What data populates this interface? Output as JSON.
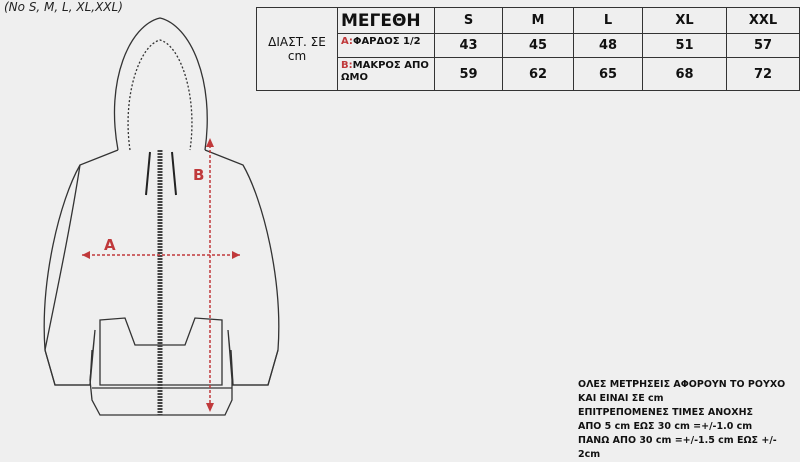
{
  "sizes_note": "(No S, M, L, XL,XXL)",
  "table": {
    "side_label": "ΔΙΑΣΤ. ΣΕ cm",
    "header": "ΜΕΓΕΘΗ",
    "sizes": [
      "S",
      "M",
      "L",
      "XL",
      "XXL"
    ],
    "rows": [
      {
        "key": "A:",
        "label": "ΦΑΡΔΟΣ 1/2",
        "values": [
          "43",
          "45",
          "48",
          "51",
          "57"
        ]
      },
      {
        "key": "B:",
        "label": "ΜΑΚΡΟΣ ΑΠΟ ΩΜΟ",
        "values": [
          "59",
          "62",
          "65",
          "68",
          "72"
        ]
      }
    ]
  },
  "drawing": {
    "label_a": "A",
    "label_b": "B",
    "accent": "#c0393b"
  },
  "notes": [
    "ΟΛΕΣ ΜΕΤΡΗΣΕΙΣ ΑΦΟΡΟΥΝ ΤΟ ΡΟΥΧΟ",
    "ΚΑΙ ΕΙΝΑΙ ΣΕ cm",
    "ΕΠΙΤΡΕΠΟΜΕΝΕΣ ΤΙΜΕΣ ΑΝΟΧΗΣ",
    "ΑΠΟ 5 cm  ΕΩΣ 30 cm =+/-1.0 cm",
    "ΠΑΝΩ ΑΠΟ 30 cm =+/-1.5 cm ΕΩΣ +/- 2cm"
  ]
}
